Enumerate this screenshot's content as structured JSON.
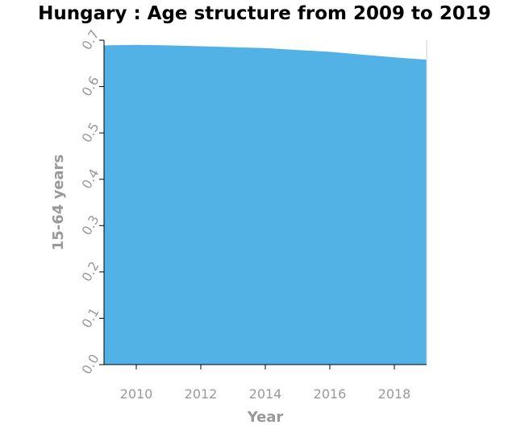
{
  "chart_data": {
    "type": "area",
    "title": "Hungary : Age structure from 2009 to 2019",
    "xlabel": "Year",
    "ylabel": "15-64 years",
    "x": [
      2009,
      2010,
      2011,
      2012,
      2013,
      2014,
      2015,
      2016,
      2017,
      2018,
      2019
    ],
    "series": [
      {
        "values": [
          0.689,
          0.69,
          0.689,
          0.687,
          0.685,
          0.683,
          0.679,
          0.675,
          0.669,
          0.663,
          0.658
        ],
        "color": "#52b1e5"
      }
    ],
    "xlim": [
      2009,
      2019
    ],
    "ylim": [
      0,
      0.7
    ],
    "xticks": [
      "2010",
      "2012",
      "2014",
      "2016",
      "2018"
    ],
    "yticks": [
      "0.0",
      "0.1",
      "0.2",
      "0.3",
      "0.4",
      "0.5",
      "0.6",
      "0.7"
    ],
    "grid": false,
    "legend": "none"
  }
}
